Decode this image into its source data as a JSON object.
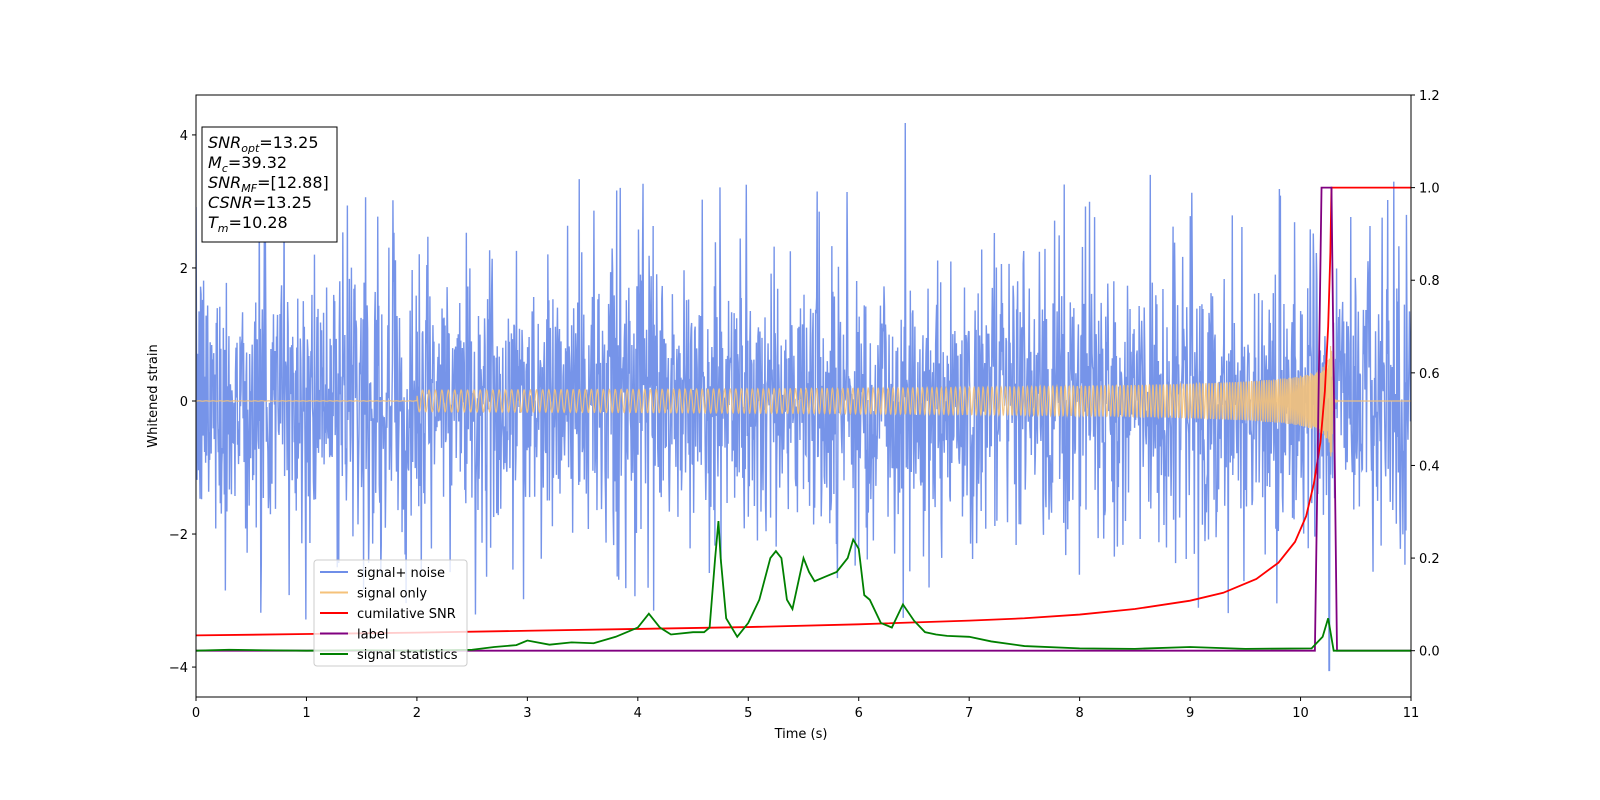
{
  "chart_data": {
    "type": "line",
    "xlabel": "Time (s)",
    "ylabel": "Whitened strain",
    "xlim": [
      0,
      11
    ],
    "ylim": [
      -4.45,
      4.6
    ],
    "y2lim": [
      -0.1,
      1.2
    ],
    "x_ticks": [
      "0",
      "1",
      "2",
      "3",
      "4",
      "5",
      "6",
      "7",
      "8",
      "9",
      "10",
      "11"
    ],
    "y_ticks": [
      "−4",
      "−2",
      "0",
      "2",
      "4"
    ],
    "y2_ticks": [
      "0.0",
      "0.2",
      "0.4",
      "0.6",
      "0.8",
      "1.0",
      "1.2"
    ],
    "legend_position": "lower-left",
    "annotations": [
      {
        "base": "SNR",
        "sub": "opt",
        "value": "=13.25"
      },
      {
        "base": "M",
        "sub": "c",
        "value": "=39.32"
      },
      {
        "base": "SNR",
        "sub": "MF",
        "value": "=[12.88]"
      },
      {
        "base": "CSNR",
        "sub": "",
        "value": "=13.25"
      },
      {
        "base": "T",
        "sub": "m",
        "value": "=10.28"
      }
    ],
    "series": [
      {
        "name": "signal+ noise",
        "color": "#6f8ee8",
        "axis": "left",
        "kind": "noisy-strain",
        "noise_envelope": [
          -2.8,
          2.8
        ],
        "peak_max": {
          "x": 6.42,
          "y": 4.18
        },
        "peak_min": {
          "x": 10.26,
          "y": -4.05
        }
      },
      {
        "name": "signal only",
        "color": "#f5c27a",
        "axis": "left",
        "kind": "chirp",
        "merger_time": 10.28,
        "peak_amplitude": 1.1
      },
      {
        "name": "cumilative SNR",
        "color": "#ff0000",
        "axis": "right",
        "x": [
          0,
          1,
          2,
          3,
          4,
          5,
          6,
          7,
          7.5,
          8,
          8.5,
          9,
          9.3,
          9.6,
          9.8,
          9.95,
          10.05,
          10.12,
          10.18,
          10.22,
          10.25,
          10.27,
          10.28,
          11
        ],
        "y": [
          0.033,
          0.036,
          0.039,
          0.043,
          0.047,
          0.051,
          0.057,
          0.065,
          0.07,
          0.078,
          0.09,
          0.108,
          0.125,
          0.155,
          0.19,
          0.235,
          0.29,
          0.36,
          0.45,
          0.56,
          0.7,
          0.86,
          1.0,
          1.0
        ]
      },
      {
        "name": "label",
        "color": "#800080",
        "axis": "right",
        "x": [
          0,
          10.13,
          10.19,
          10.28,
          10.33,
          11
        ],
        "y": [
          0,
          0,
          1,
          1,
          0,
          0
        ]
      },
      {
        "name": "signal statistics",
        "color": "#008000",
        "axis": "right",
        "x": [
          0,
          0.3,
          0.6,
          1,
          1.5,
          2,
          2.5,
          2.7,
          2.9,
          3.0,
          3.2,
          3.4,
          3.6,
          3.8,
          3.9,
          4.0,
          4.1,
          4.2,
          4.3,
          4.5,
          4.6,
          4.65,
          4.7,
          4.73,
          4.75,
          4.8,
          4.9,
          5.0,
          5.1,
          5.2,
          5.25,
          5.3,
          5.35,
          5.4,
          5.5,
          5.55,
          5.6,
          5.7,
          5.8,
          5.9,
          5.95,
          6.0,
          6.05,
          6.1,
          6.2,
          6.3,
          6.4,
          6.5,
          6.6,
          6.7,
          6.8,
          7.0,
          7.2,
          7.5,
          8.0,
          8.5,
          9.0,
          9.5,
          10.1,
          10.2,
          10.25,
          10.3,
          11
        ],
        "y": [
          0,
          0.002,
          0.001,
          0,
          0.001,
          0,
          0.002,
          0.008,
          0.012,
          0.022,
          0.013,
          0.018,
          0.016,
          0.03,
          0.04,
          0.05,
          0.08,
          0.05,
          0.035,
          0.04,
          0.04,
          0.05,
          0.2,
          0.28,
          0.2,
          0.07,
          0.03,
          0.06,
          0.11,
          0.2,
          0.215,
          0.2,
          0.11,
          0.09,
          0.2,
          0.17,
          0.15,
          0.16,
          0.17,
          0.2,
          0.24,
          0.22,
          0.12,
          0.11,
          0.06,
          0.05,
          0.1,
          0.065,
          0.04,
          0.035,
          0.032,
          0.03,
          0.02,
          0.01,
          0.005,
          0.004,
          0.008,
          0.004,
          0.005,
          0.03,
          0.07,
          0.0,
          0.0
        ]
      }
    ]
  }
}
